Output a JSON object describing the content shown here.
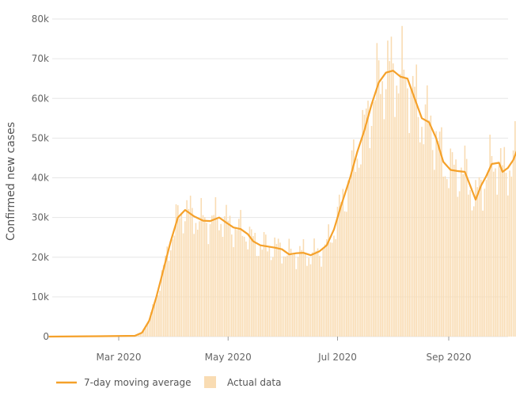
{
  "chart_data": {
    "type": "bar+line",
    "title": "",
    "ylabel": "Confirmed new cases",
    "xlabel": "",
    "ylim": [
      0,
      80000
    ],
    "grid": true,
    "legend_position": "bottom-left",
    "y_ticks": [
      {
        "value": 0,
        "label": "0"
      },
      {
        "value": 10000,
        "label": "10k"
      },
      {
        "value": 20000,
        "label": "20k"
      },
      {
        "value": 30000,
        "label": "30k"
      },
      {
        "value": 40000,
        "label": "40k"
      },
      {
        "value": 50000,
        "label": "50k"
      },
      {
        "value": 60000,
        "label": "60k"
      },
      {
        "value": 70000,
        "label": "70k"
      },
      {
        "value": 80000,
        "label": "80k"
      }
    ],
    "x_ticks": [
      {
        "date": "2020-03-01",
        "label": "Mar 2020"
      },
      {
        "date": "2020-05-01",
        "label": "May 2020"
      },
      {
        "date": "2020-07-01",
        "label": "Jul 2020"
      },
      {
        "date": "2020-09-01",
        "label": "Sep 2020"
      }
    ],
    "x_range": [
      "2020-01-22",
      "2020-09-29"
    ],
    "series": [
      {
        "name": "7-day moving average",
        "kind": "line",
        "color": "#f5a12a",
        "points": [
          [
            "2020-01-22",
            0
          ],
          [
            "2020-02-20",
            100
          ],
          [
            "2020-03-10",
            200
          ],
          [
            "2020-03-14",
            1000
          ],
          [
            "2020-03-18",
            4000
          ],
          [
            "2020-03-22",
            10000
          ],
          [
            "2020-03-26",
            17000
          ],
          [
            "2020-03-30",
            24000
          ],
          [
            "2020-04-03",
            30000
          ],
          [
            "2020-04-07",
            31900
          ],
          [
            "2020-04-12",
            30300
          ],
          [
            "2020-04-17",
            29200
          ],
          [
            "2020-04-21",
            29100
          ],
          [
            "2020-04-26",
            30000
          ],
          [
            "2020-04-30",
            28700
          ],
          [
            "2020-05-04",
            27500
          ],
          [
            "2020-05-08",
            27100
          ],
          [
            "2020-05-12",
            25800
          ],
          [
            "2020-05-15",
            24000
          ],
          [
            "2020-05-19",
            23000
          ],
          [
            "2020-05-23",
            22700
          ],
          [
            "2020-05-27",
            22400
          ],
          [
            "2020-05-31",
            22000
          ],
          [
            "2020-06-04",
            20700
          ],
          [
            "2020-06-08",
            21000
          ],
          [
            "2020-06-12",
            21100
          ],
          [
            "2020-06-16",
            20500
          ],
          [
            "2020-06-21",
            21500
          ],
          [
            "2020-06-25",
            23000
          ],
          [
            "2020-06-29",
            27000
          ],
          [
            "2020-07-03",
            33000
          ],
          [
            "2020-07-08",
            40000
          ],
          [
            "2020-07-12",
            46500
          ],
          [
            "2020-07-16",
            52000
          ],
          [
            "2020-07-20",
            58500
          ],
          [
            "2020-07-24",
            64000
          ],
          [
            "2020-07-28",
            66500
          ],
          [
            "2020-08-01",
            67000
          ],
          [
            "2020-08-05",
            65500
          ],
          [
            "2020-08-09",
            65000
          ],
          [
            "2020-08-13",
            60000
          ],
          [
            "2020-08-17",
            55000
          ],
          [
            "2020-08-21",
            54000
          ],
          [
            "2020-08-25",
            50000
          ],
          [
            "2020-08-29",
            44000
          ],
          [
            "2020-09-02",
            42000
          ],
          [
            "2020-09-06",
            41700
          ],
          [
            "2020-09-10",
            41500
          ],
          [
            "2020-09-13",
            38000
          ],
          [
            "2020-09-16",
            34500
          ],
          [
            "2020-09-19",
            38000
          ],
          [
            "2020-09-22",
            40500
          ],
          [
            "2020-09-25",
            43500
          ],
          [
            "2020-09-29",
            43800
          ],
          [
            "2020-10-01",
            41500
          ],
          [
            "2020-10-04",
            42500
          ],
          [
            "2020-10-07",
            44500
          ],
          [
            "2020-10-09",
            46800
          ]
        ]
      },
      {
        "name": "Actual data",
        "kind": "bar",
        "color": "#f9dcb3"
      }
    ]
  }
}
